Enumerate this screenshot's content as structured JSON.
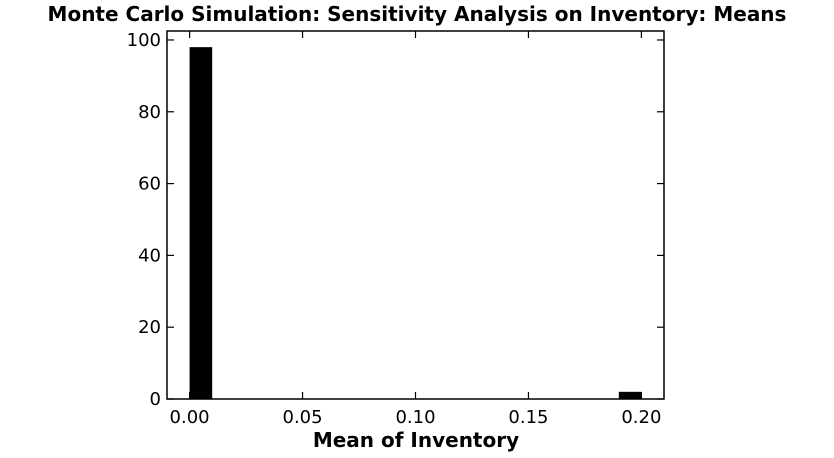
{
  "chart_data": {
    "type": "histogram",
    "title": "Monte Carlo Simulation: Sensitivity Analysis on Inventory: Means",
    "x_label": "Mean of Inventory",
    "bins": [
      0,
      0.01,
      0.02,
      0.03,
      0.04,
      0.05,
      0.06,
      0.07,
      0.08,
      0.09,
      0.1,
      0.11,
      0.12,
      0.13,
      0.14,
      0.15,
      0.16,
      0.17,
      0.18,
      0.19,
      0.2
    ],
    "values": [
      98,
      0,
      0,
      0,
      0,
      0,
      0,
      0,
      0,
      0,
      0,
      0,
      0,
      0,
      0,
      0,
      0,
      0,
      0,
      2
    ],
    "color": "#000000",
    "xlim": [
      -0.01,
      0.21
    ],
    "ylim": [
      0,
      102.5
    ],
    "xticks": [
      {
        "value": 0,
        "label": "0.00"
      },
      {
        "value": 0.05,
        "label": "0.05"
      },
      {
        "value": 0.1,
        "label": "0.10"
      },
      {
        "value": 0.15,
        "label": "0.15"
      },
      {
        "value": 0.2,
        "label": "0.20"
      }
    ],
    "yticks": [
      0,
      20,
      40,
      60,
      80,
      100
    ]
  }
}
